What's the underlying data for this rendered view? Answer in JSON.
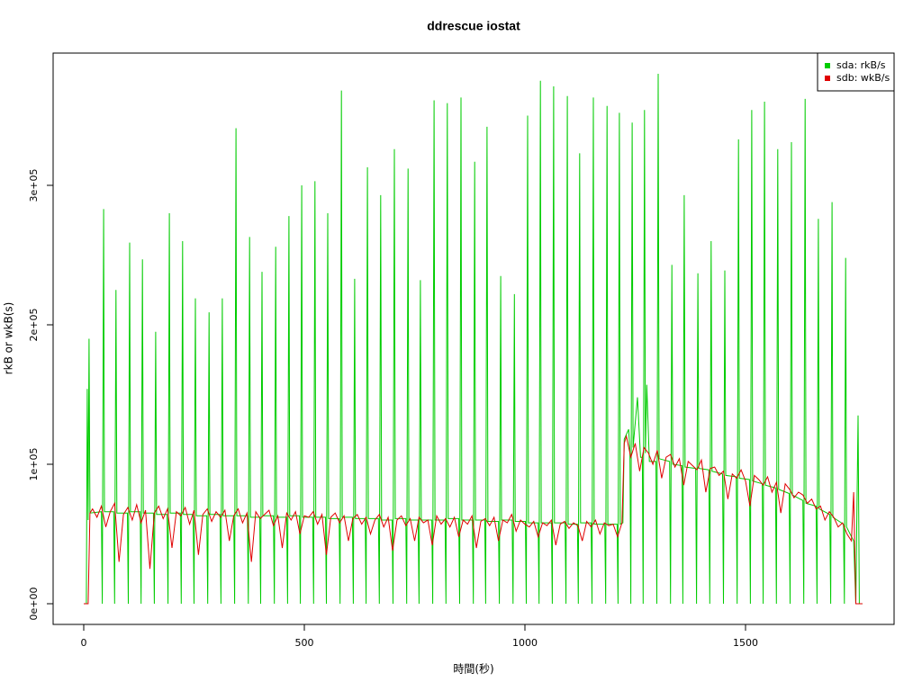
{
  "chart_data": {
    "type": "line",
    "title": "ddrescue iostat",
    "x_label": "時間(秒)",
    "y_label": "rkB or wkB(s)",
    "xlim": [
      -69.4,
      1836.7
    ],
    "ylim": [
      -14839,
      394839
    ],
    "xticks": [
      0,
      500,
      1000,
      1500
    ],
    "yticks": [
      {
        "value": 0,
        "label": "0e+00"
      },
      {
        "value": 100000,
        "label": "1e+05"
      },
      {
        "value": 200000,
        "label": "2e+05"
      },
      {
        "value": 300000,
        "label": "3e+05"
      }
    ],
    "legend": "topright",
    "series": [
      {
        "name": "sda: rkB/s",
        "color": "#00cc00",
        "x": [
          0,
          6,
          8,
          10,
          12,
          14,
          40,
          42,
          45,
          47,
          68,
          70,
          73,
          75,
          99,
          101,
          104,
          106,
          128,
          130,
          133,
          135,
          158,
          160,
          163,
          165,
          189,
          191,
          194,
          196,
          219,
          221,
          224,
          226,
          248,
          250,
          253,
          255,
          279,
          281,
          284,
          286,
          309,
          311,
          314,
          316,
          340,
          342,
          345,
          347,
          371,
          373,
          376,
          378,
          399,
          401,
          404,
          406,
          430,
          432,
          435,
          437,
          460,
          462,
          465,
          467,
          489,
          491,
          494,
          496,
          519,
          521,
          524,
          526,
          548,
          550,
          553,
          555,
          579,
          581,
          584,
          586,
          609,
          611,
          614,
          616,
          638,
          640,
          643,
          645,
          668,
          670,
          673,
          675,
          699,
          701,
          704,
          706,
          730,
          732,
          735,
          737,
          758,
          760,
          763,
          765,
          789,
          791,
          794,
          796,
          819,
          821,
          824,
          826,
          850,
          852,
          855,
          857,
          881,
          883,
          886,
          888,
          909,
          911,
          914,
          916,
          940,
          942,
          945,
          947,
          971,
          973,
          976,
          978,
          1001,
          1003,
          1006,
          1008,
          1030,
          1032,
          1035,
          1037,
          1060,
          1062,
          1065,
          1067,
          1091,
          1093,
          1096,
          1098,
          1119,
          1121,
          1124,
          1126,
          1150,
          1152,
          1155,
          1157,
          1181,
          1183,
          1186,
          1188,
          1209,
          1211,
          1214,
          1216,
          1222,
          1225,
          1235,
          1238,
          1240,
          1243,
          1245,
          1255,
          1262,
          1266,
          1268,
          1271,
          1273,
          1276,
          1282,
          1297,
          1299,
          1302,
          1304,
          1328,
          1330,
          1333,
          1335,
          1356,
          1358,
          1361,
          1363,
          1387,
          1389,
          1392,
          1394,
          1417,
          1419,
          1422,
          1424,
          1448,
          1450,
          1453,
          1455,
          1479,
          1481,
          1484,
          1486,
          1509,
          1511,
          1514,
          1516,
          1538,
          1540,
          1543,
          1545,
          1568,
          1570,
          1573,
          1575,
          1599,
          1601,
          1604,
          1606,
          1630,
          1632,
          1635,
          1637,
          1660,
          1662,
          1665,
          1667,
          1691,
          1693,
          1696,
          1698,
          1722,
          1724,
          1727,
          1729,
          1745,
          1750,
          1755,
          1758,
          1765
        ],
        "values": [
          0,
          0,
          154000,
          60000,
          190000,
          65000,
          66000,
          0,
          283000,
          66000,
          66000,
          0,
          225000,
          65000,
          65000,
          0,
          259000,
          66000,
          66000,
          0,
          247000,
          65000,
          65000,
          0,
          195000,
          64000,
          64000,
          0,
          280000,
          65000,
          65000,
          0,
          260000,
          64000,
          64000,
          0,
          219000,
          63000,
          63000,
          0,
          209000,
          64000,
          64000,
          0,
          219000,
          63000,
          63000,
          0,
          341000,
          63000,
          63000,
          0,
          263000,
          62000,
          62000,
          0,
          238000,
          63000,
          63000,
          0,
          256000,
          62000,
          62000,
          0,
          278000,
          63000,
          63000,
          0,
          300000,
          62000,
          62000,
          0,
          303000,
          62000,
          62000,
          0,
          280000,
          61000,
          61000,
          0,
          368000,
          62000,
          62000,
          0,
          233000,
          61000,
          61000,
          0,
          313000,
          61000,
          61000,
          0,
          293000,
          60000,
          60000,
          0,
          326000,
          61000,
          61000,
          0,
          312000,
          60000,
          60000,
          0,
          232000,
          60000,
          60000,
          0,
          361000,
          60000,
          60000,
          0,
          359000,
          61000,
          61000,
          0,
          363000,
          60000,
          60000,
          0,
          317000,
          60000,
          60000,
          0,
          342000,
          59000,
          59000,
          0,
          235000,
          60000,
          60000,
          0,
          222000,
          59000,
          59000,
          0,
          350000,
          58000,
          58000,
          0,
          375000,
          58000,
          58000,
          0,
          371000,
          58000,
          58000,
          0,
          364000,
          57000,
          57000,
          0,
          323000,
          58000,
          58000,
          0,
          363000,
          57000,
          57000,
          0,
          357000,
          57000,
          57000,
          0,
          352000,
          57000,
          58000,
          118000,
          125000,
          110000,
          0,
          345000,
          112000,
          148000,
          105000,
          105000,
          0,
          354000,
          108000,
          157000,
          102000,
          102000,
          0,
          380000,
          104000,
          102000,
          0,
          243000,
          100000,
          99000,
          0,
          293000,
          98000,
          97000,
          0,
          237000,
          97000,
          96000,
          0,
          260000,
          95000,
          93000,
          0,
          239000,
          92000,
          91000,
          0,
          333000,
          90000,
          89000,
          0,
          354000,
          88000,
          86000,
          0,
          360000,
          85000,
          83000,
          0,
          326000,
          82000,
          79000,
          0,
          331000,
          78000,
          74000,
          0,
          362000,
          72000,
          70000,
          0,
          276000,
          68000,
          64000,
          0,
          288000,
          62000,
          57000,
          0,
          248000,
          55000,
          45000,
          0,
          135000,
          0,
          0
        ]
      },
      {
        "name": "sdb: wkB/s",
        "color": "#e00000",
        "x": [
          0,
          10,
          14,
          20,
          30,
          40,
          50,
          60,
          70,
          80,
          90,
          100,
          110,
          120,
          130,
          140,
          150,
          160,
          170,
          180,
          190,
          200,
          210,
          220,
          230,
          240,
          250,
          260,
          270,
          280,
          290,
          300,
          310,
          320,
          330,
          340,
          350,
          360,
          370,
          380,
          390,
          400,
          410,
          420,
          430,
          440,
          450,
          460,
          470,
          480,
          490,
          500,
          510,
          520,
          530,
          540,
          550,
          560,
          570,
          580,
          590,
          600,
          610,
          620,
          630,
          640,
          650,
          660,
          670,
          680,
          690,
          700,
          710,
          720,
          730,
          740,
          750,
          760,
          770,
          780,
          790,
          800,
          810,
          820,
          830,
          840,
          850,
          860,
          870,
          880,
          890,
          900,
          910,
          920,
          930,
          940,
          950,
          960,
          970,
          980,
          990,
          1000,
          1010,
          1020,
          1030,
          1040,
          1050,
          1060,
          1070,
          1080,
          1090,
          1100,
          1110,
          1120,
          1130,
          1140,
          1150,
          1160,
          1170,
          1180,
          1190,
          1200,
          1210,
          1220,
          1225,
          1230,
          1240,
          1250,
          1260,
          1270,
          1280,
          1290,
          1300,
          1310,
          1320,
          1330,
          1340,
          1350,
          1360,
          1370,
          1380,
          1390,
          1400,
          1410,
          1420,
          1430,
          1440,
          1450,
          1460,
          1470,
          1480,
          1490,
          1500,
          1510,
          1520,
          1530,
          1540,
          1550,
          1560,
          1570,
          1580,
          1590,
          1600,
          1610,
          1620,
          1630,
          1640,
          1650,
          1660,
          1670,
          1680,
          1690,
          1700,
          1710,
          1720,
          1730,
          1740,
          1745,
          1750,
          1765
        ],
        "values": [
          0,
          0,
          65000,
          68000,
          62000,
          70000,
          55000,
          66000,
          72000,
          30000,
          64000,
          69000,
          60000,
          71000,
          58000,
          67000,
          25000,
          65000,
          70000,
          61000,
          68000,
          40000,
          66000,
          63000,
          69000,
          57000,
          67000,
          35000,
          64000,
          68000,
          59000,
          66000,
          62000,
          67000,
          45000,
          63000,
          68000,
          58000,
          65000,
          30000,
          66000,
          61000,
          64000,
          67000,
          56000,
          63000,
          40000,
          65000,
          60000,
          66000,
          50000,
          63000,
          62000,
          66000,
          57000,
          64000,
          35000,
          62000,
          65000,
          58000,
          63000,
          45000,
          61000,
          64000,
          57000,
          62000,
          50000,
          60000,
          64000,
          55000,
          62000,
          38000,
          60000,
          63000,
          56000,
          61000,
          45000,
          62000,
          58000,
          60000,
          42000,
          63000,
          57000,
          61000,
          55000,
          62000,
          48000,
          60000,
          57000,
          63000,
          40000,
          59000,
          61000,
          56000,
          62000,
          45000,
          60000,
          58000,
          64000,
          52000,
          60000,
          57000,
          55000,
          59000,
          48000,
          58000,
          56000,
          60000,
          42000,
          57000,
          59000,
          54000,
          58000,
          56000,
          45000,
          59000,
          55000,
          60000,
          50000,
          58000,
          56000,
          57000,
          48000,
          58000,
          115000,
          120000,
          105000,
          115000,
          95000,
          112000,
          108000,
          100000,
          110000,
          90000,
          105000,
          107000,
          98000,
          104000,
          85000,
          102000,
          99000,
          96000,
          103000,
          80000,
          97000,
          98000,
          92000,
          95000,
          75000,
          93000,
          90000,
          96000,
          88000,
          70000,
          92000,
          89000,
          85000,
          91000,
          80000,
          87000,
          65000,
          86000,
          82000,
          76000,
          80000,
          78000,
          72000,
          75000,
          68000,
          70000,
          60000,
          66000,
          62000,
          55000,
          58000,
          50000,
          45000,
          80000,
          0,
          0
        ]
      }
    ]
  }
}
